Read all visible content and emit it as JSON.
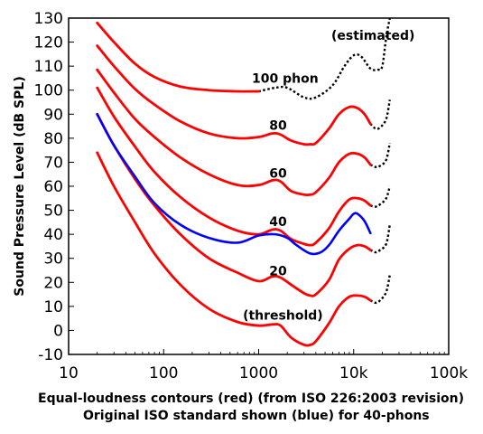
{
  "chart_data": {
    "type": "line",
    "xlabel_line1": "Equal-loudness contours (red) (from ISO 226:2003 revision)",
    "xlabel_line2": "Original ISO standard shown (blue) for 40-phons",
    "ylabel": "Sound Pressure Level (dB SPL)",
    "x_scale": "log",
    "xlim": [
      10,
      100000
    ],
    "ylim": [
      -10,
      130
    ],
    "x_ticks": [
      {
        "value": 10,
        "label": "10"
      },
      {
        "value": 100,
        "label": "100"
      },
      {
        "value": 1000,
        "label": "1000"
      },
      {
        "value": 10000,
        "label": "10k"
      },
      {
        "value": 100000,
        "label": "100k"
      }
    ],
    "y_ticks": [
      {
        "value": 130,
        "label": "130"
      },
      {
        "value": 120,
        "label": "120"
      },
      {
        "value": 110,
        "label": "110"
      },
      {
        "value": 100,
        "label": "100"
      },
      {
        "value": 90,
        "label": "90"
      },
      {
        "value": 80,
        "label": "80"
      },
      {
        "value": 70,
        "label": "70"
      },
      {
        "value": 60,
        "label": "60"
      },
      {
        "value": 50,
        "label": "50"
      },
      {
        "value": 40,
        "label": "40"
      },
      {
        "value": 30,
        "label": "30"
      },
      {
        "value": 20,
        "label": "20"
      },
      {
        "value": 10,
        "label": "10"
      },
      {
        "value": 0,
        "label": "0"
      },
      {
        "value": -10,
        "label": "-10"
      }
    ],
    "grid": false,
    "annotations": [
      {
        "text": "(estimated)",
        "x": 16000,
        "y": 121
      },
      {
        "text": "100 phon",
        "x": 1900,
        "y": 103
      },
      {
        "text": "80",
        "x": 1600,
        "y": 83.5
      },
      {
        "text": "60",
        "x": 1600,
        "y": 63.5
      },
      {
        "text": "40",
        "x": 1600,
        "y": 43.5
      },
      {
        "text": "20",
        "x": 1600,
        "y": 23
      },
      {
        "text": "(threshold)",
        "x": 1800,
        "y": 4.5
      }
    ],
    "series": [
      {
        "color": "#ff0000",
        "dashed_color": "#000000",
        "solid": [
          [
            20,
            128
          ],
          [
            30,
            120
          ],
          [
            50,
            111
          ],
          [
            80,
            105.5
          ],
          [
            150,
            101.5
          ],
          [
            300,
            100
          ],
          [
            600,
            99.5
          ],
          [
            1000,
            99.5
          ]
        ],
        "dashed": [
          [
            1000,
            99.5
          ],
          [
            1500,
            101
          ],
          [
            2000,
            101
          ],
          [
            3000,
            97
          ],
          [
            4000,
            97
          ],
          [
            6000,
            102
          ],
          [
            8000,
            110
          ],
          [
            10000,
            114.5
          ],
          [
            12000,
            114
          ],
          [
            15000,
            109
          ],
          [
            18000,
            108.5
          ],
          [
            20000,
            110
          ],
          [
            22000,
            122
          ],
          [
            24000,
            130
          ]
        ]
      },
      {
        "color": "#ff0000",
        "dashed_color": "#000000",
        "solid": [
          [
            20,
            118.5
          ],
          [
            30,
            110
          ],
          [
            50,
            100.5
          ],
          [
            80,
            94
          ],
          [
            150,
            87
          ],
          [
            300,
            82
          ],
          [
            600,
            80
          ],
          [
            1000,
            80.5
          ],
          [
            1400,
            82
          ],
          [
            1700,
            81.5
          ],
          [
            2200,
            79
          ],
          [
            3000,
            77.5
          ],
          [
            3500,
            77.5
          ],
          [
            4000,
            78
          ],
          [
            5500,
            84
          ],
          [
            7000,
            90
          ],
          [
            9000,
            93
          ],
          [
            11000,
            92.5
          ],
          [
            13000,
            90
          ],
          [
            15000,
            86
          ]
        ],
        "dashed": [
          [
            15000,
            86
          ],
          [
            17000,
            84
          ],
          [
            19000,
            84.5
          ],
          [
            22000,
            88
          ],
          [
            24000,
            96
          ]
        ]
      },
      {
        "color": "#ff0000",
        "dashed_color": "#000000",
        "solid": [
          [
            20,
            108.5
          ],
          [
            30,
            99
          ],
          [
            50,
            88
          ],
          [
            80,
            80.5
          ],
          [
            150,
            72
          ],
          [
            300,
            65
          ],
          [
            600,
            60.5
          ],
          [
            1000,
            60.5
          ],
          [
            1400,
            62.5
          ],
          [
            1700,
            62
          ],
          [
            2200,
            58
          ],
          [
            3000,
            56.5
          ],
          [
            3500,
            56.5
          ],
          [
            4000,
            57.5
          ],
          [
            5500,
            63.5
          ],
          [
            7000,
            70
          ],
          [
            9000,
            73.5
          ],
          [
            11000,
            73.5
          ],
          [
            13000,
            72
          ],
          [
            15000,
            69
          ]
        ],
        "dashed": [
          [
            15000,
            69
          ],
          [
            17000,
            68
          ],
          [
            19000,
            68.5
          ],
          [
            22000,
            71
          ],
          [
            24000,
            78
          ]
        ]
      },
      {
        "color": "#ff0000",
        "dashed_color": "#000000",
        "solid": [
          [
            20,
            101
          ],
          [
            30,
            89
          ],
          [
            50,
            76.5
          ],
          [
            80,
            66
          ],
          [
            150,
            55.5
          ],
          [
            300,
            47
          ],
          [
            600,
            41.5
          ],
          [
            1000,
            40
          ],
          [
            1400,
            42
          ],
          [
            1700,
            41.5
          ],
          [
            2200,
            38
          ],
          [
            3000,
            36
          ],
          [
            3500,
            35.5
          ],
          [
            4000,
            36.5
          ],
          [
            5500,
            42.5
          ],
          [
            7000,
            49.5
          ],
          [
            9000,
            54.5
          ],
          [
            11000,
            55
          ],
          [
            13000,
            54
          ],
          [
            15000,
            52
          ]
        ],
        "dashed": [
          [
            15000,
            52
          ],
          [
            17000,
            51.5
          ],
          [
            19000,
            52.5
          ],
          [
            22000,
            55
          ],
          [
            24000,
            60
          ]
        ]
      },
      {
        "color": "#ff0000",
        "dashed_color": "#000000",
        "solid": [
          [
            20,
            90
          ],
          [
            30,
            77
          ],
          [
            50,
            63
          ],
          [
            80,
            52
          ],
          [
            150,
            40
          ],
          [
            300,
            30
          ],
          [
            600,
            24
          ],
          [
            1000,
            20.5
          ],
          [
            1400,
            22.5
          ],
          [
            1700,
            22
          ],
          [
            2200,
            19
          ],
          [
            3000,
            15.5
          ],
          [
            3500,
            14.5
          ],
          [
            4000,
            15
          ],
          [
            5500,
            21
          ],
          [
            7000,
            29.5
          ],
          [
            9000,
            34
          ],
          [
            11000,
            35.5
          ],
          [
            13000,
            35
          ],
          [
            15000,
            33.5
          ]
        ],
        "dashed": [
          [
            15000,
            33.5
          ],
          [
            17000,
            32.5
          ],
          [
            19000,
            33.5
          ],
          [
            22000,
            36
          ],
          [
            24000,
            44
          ]
        ]
      },
      {
        "color": "#ff0000",
        "dashed_color": "#000000",
        "solid": [
          [
            20,
            74
          ],
          [
            30,
            60
          ],
          [
            50,
            45
          ],
          [
            80,
            32
          ],
          [
            150,
            19
          ],
          [
            300,
            9
          ],
          [
            600,
            3.5
          ],
          [
            1000,
            2
          ],
          [
            1400,
            2.5
          ],
          [
            1700,
            2
          ],
          [
            2200,
            -3
          ],
          [
            3000,
            -6
          ],
          [
            3500,
            -6
          ],
          [
            4000,
            -4.5
          ],
          [
            5500,
            3
          ],
          [
            7000,
            10
          ],
          [
            9000,
            14
          ],
          [
            11000,
            14.5
          ],
          [
            13000,
            14
          ],
          [
            15000,
            12.5
          ]
        ],
        "dashed": [
          [
            15000,
            12.5
          ],
          [
            17000,
            11.5
          ],
          [
            19000,
            12.5
          ],
          [
            22000,
            16
          ],
          [
            24000,
            23
          ]
        ]
      },
      {
        "color": "#0000ff",
        "dashed_color": "#0000ff",
        "solid": [
          [
            20,
            90
          ],
          [
            30,
            77
          ],
          [
            50,
            64
          ],
          [
            80,
            53
          ],
          [
            150,
            44
          ],
          [
            300,
            38.5
          ],
          [
            600,
            36.5
          ],
          [
            1000,
            39.5
          ],
          [
            1500,
            40
          ],
          [
            2000,
            38.5
          ],
          [
            2500,
            35.5
          ],
          [
            3500,
            32
          ],
          [
            4500,
            32.5
          ],
          [
            5500,
            35.5
          ],
          [
            7000,
            41.5
          ],
          [
            9000,
            46.5
          ],
          [
            10000,
            48.5
          ],
          [
            11000,
            48.5
          ],
          [
            13000,
            45.5
          ],
          [
            15000,
            40.5
          ]
        ],
        "dashed": []
      }
    ]
  }
}
